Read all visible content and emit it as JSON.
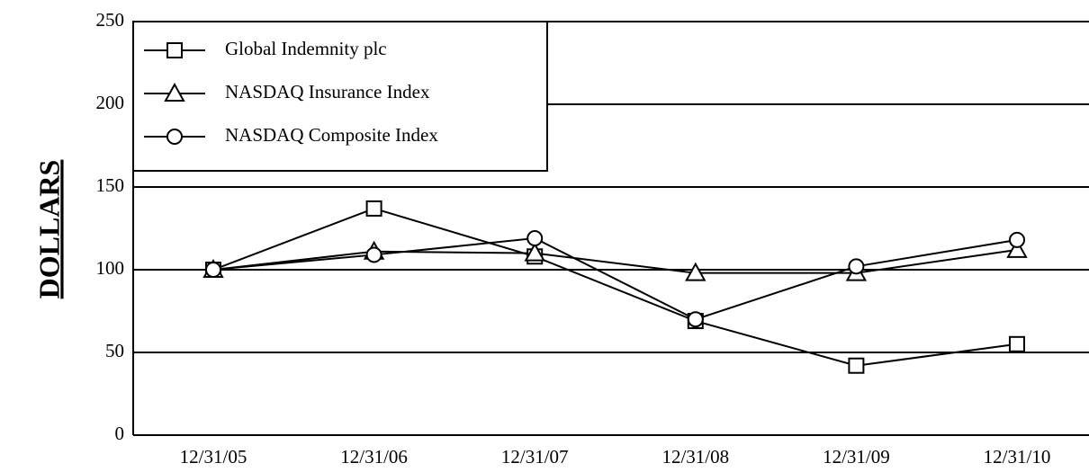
{
  "chart_data": {
    "type": "line",
    "y_label": "DOLLARS",
    "categories": [
      "12/31/05",
      "12/31/06",
      "12/31/07",
      "12/31/08",
      "12/31/09",
      "12/31/10"
    ],
    "series": [
      {
        "name": "Global Indemnity plc",
        "color": "#000000",
        "marker": "square",
        "values": [
          100,
          137,
          108,
          69,
          42,
          55
        ]
      },
      {
        "name": "NASDAQ Insurance Index",
        "color": "#000000",
        "marker": "triangle",
        "values": [
          100,
          111,
          110,
          98,
          98,
          112
        ]
      },
      {
        "name": "NASDAQ Composite Index",
        "color": "#000000",
        "marker": "circle",
        "values": [
          100,
          109,
          119,
          70,
          102,
          118
        ]
      }
    ],
    "ylim": [
      0,
      250
    ],
    "yticks": [
      0,
      50,
      100,
      150,
      200,
      250
    ],
    "grid": true,
    "legend": "upper left"
  }
}
